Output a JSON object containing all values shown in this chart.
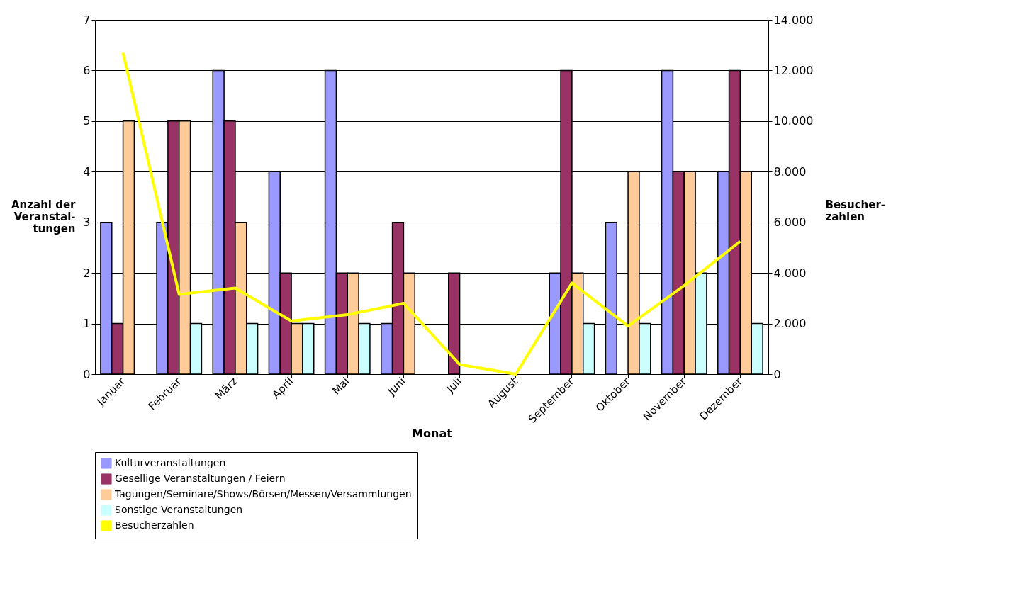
{
  "chart_data": {
    "type": "bar",
    "xlabel": "Monat",
    "ylabel": "Anzahl der\nVeranstal-\ntungen",
    "y2label": "Besucher-\nzahlen",
    "categories": [
      "Januar",
      "Februar",
      "März",
      "April",
      "Mai",
      "Juni",
      "Juli",
      "August",
      "September",
      "Oktober",
      "November",
      "Dezember"
    ],
    "series": [
      {
        "name": "Kulturveranstaltungen",
        "color": "#9999ff",
        "values": [
          3,
          3,
          6,
          4,
          6,
          1,
          0,
          0,
          2,
          3,
          6,
          4
        ]
      },
      {
        "name": "Gesellige Veranstaltungen / Feiern",
        "color": "#993366",
        "values": [
          1,
          5,
          5,
          2,
          2,
          3,
          2,
          0,
          6,
          0,
          4,
          6
        ]
      },
      {
        "name": "Tagungen/Seminare/Shows/Börsen/Messen/Versammlungen",
        "color": "#ffcc99",
        "values": [
          5,
          5,
          3,
          1,
          2,
          2,
          0,
          0,
          2,
          4,
          4,
          4
        ]
      },
      {
        "name": "Sonstige Veranstaltungen",
        "color": "#ccffff",
        "values": [
          0,
          1,
          1,
          1,
          1,
          0,
          0,
          0,
          1,
          1,
          2,
          1
        ]
      },
      {
        "name": "Besucherzahlen",
        "color": "#ffff00",
        "type": "line",
        "axis": "y2",
        "values": [
          12700,
          3150,
          3400,
          2100,
          2350,
          2800,
          380,
          0,
          3600,
          1900,
          3500,
          5250
        ]
      }
    ],
    "ylim": [
      0,
      7
    ],
    "yticks": [
      0,
      1,
      2,
      3,
      4,
      5,
      6,
      7
    ],
    "y2lim": [
      0,
      14000
    ],
    "y2ticks": [
      {
        "value": 0,
        "label": "0"
      },
      {
        "value": 2000,
        "label": "2.000"
      },
      {
        "value": 4000,
        "label": "4.000"
      },
      {
        "value": 6000,
        "label": "6.000"
      },
      {
        "value": 8000,
        "label": "8.000"
      },
      {
        "value": 10000,
        "label": "10.000"
      },
      {
        "value": 12000,
        "label": "12.000"
      },
      {
        "value": 14000,
        "label": "14.000"
      }
    ],
    "grid": "y",
    "legend": "bottom"
  }
}
